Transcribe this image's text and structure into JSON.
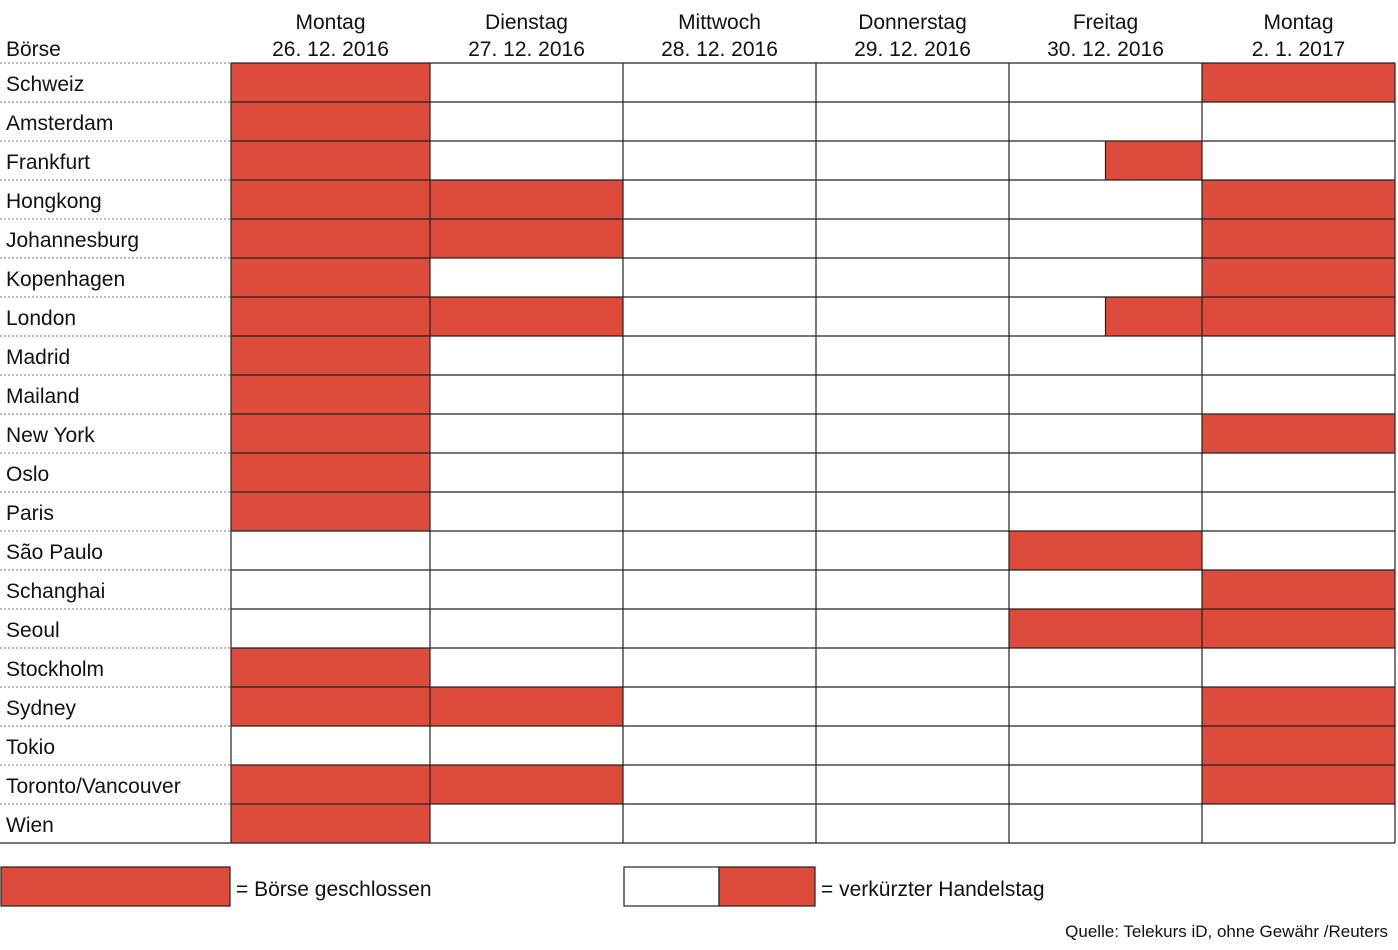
{
  "chart_data": {
    "type": "table",
    "row_header": "Börse",
    "columns": [
      {
        "day": "Montag",
        "date": "26. 12. 2016"
      },
      {
        "day": "Dienstag",
        "date": "27. 12. 2016"
      },
      {
        "day": "Mittwoch",
        "date": "28. 12. 2016"
      },
      {
        "day": "Donnerstag",
        "date": "29. 12. 2016"
      },
      {
        "day": "Freitag",
        "date": "30. 12. 2016"
      },
      {
        "day": "Montag",
        "date": "2. 1. 2017"
      }
    ],
    "rows": [
      {
        "name": "Schweiz",
        "status": [
          "closed",
          "open",
          "open",
          "open",
          "open",
          "closed"
        ]
      },
      {
        "name": "Amsterdam",
        "status": [
          "closed",
          "open",
          "open",
          "open",
          "open",
          "open"
        ]
      },
      {
        "name": "Frankfurt",
        "status": [
          "closed",
          "open",
          "open",
          "open",
          "shortened",
          "open"
        ]
      },
      {
        "name": "Hongkong",
        "status": [
          "closed",
          "closed",
          "open",
          "open",
          "open",
          "closed"
        ]
      },
      {
        "name": "Johannesburg",
        "status": [
          "closed",
          "closed",
          "open",
          "open",
          "open",
          "closed"
        ]
      },
      {
        "name": "Kopenhagen",
        "status": [
          "closed",
          "open",
          "open",
          "open",
          "open",
          "closed"
        ]
      },
      {
        "name": "London",
        "status": [
          "closed",
          "closed",
          "open",
          "open",
          "shortened",
          "closed"
        ]
      },
      {
        "name": "Madrid",
        "status": [
          "closed",
          "open",
          "open",
          "open",
          "open",
          "open"
        ]
      },
      {
        "name": "Mailand",
        "status": [
          "closed",
          "open",
          "open",
          "open",
          "open",
          "open"
        ]
      },
      {
        "name": "New York",
        "status": [
          "closed",
          "open",
          "open",
          "open",
          "open",
          "closed"
        ]
      },
      {
        "name": "Oslo",
        "status": [
          "closed",
          "open",
          "open",
          "open",
          "open",
          "open"
        ]
      },
      {
        "name": "Paris",
        "status": [
          "closed",
          "open",
          "open",
          "open",
          "open",
          "open"
        ]
      },
      {
        "name": "São Paulo",
        "status": [
          "open",
          "open",
          "open",
          "open",
          "closed",
          "open"
        ]
      },
      {
        "name": "Schanghai",
        "status": [
          "open",
          "open",
          "open",
          "open",
          "open",
          "closed"
        ]
      },
      {
        "name": "Seoul",
        "status": [
          "open",
          "open",
          "open",
          "open",
          "closed",
          "closed"
        ]
      },
      {
        "name": "Stockholm",
        "status": [
          "closed",
          "open",
          "open",
          "open",
          "open",
          "open"
        ]
      },
      {
        "name": "Sydney",
        "status": [
          "closed",
          "closed",
          "open",
          "open",
          "open",
          "closed"
        ]
      },
      {
        "name": "Tokio",
        "status": [
          "open",
          "open",
          "open",
          "open",
          "open",
          "closed"
        ]
      },
      {
        "name": "Toronto/Vancouver",
        "status": [
          "closed",
          "closed",
          "open",
          "open",
          "open",
          "closed"
        ]
      },
      {
        "name": "Wien",
        "status": [
          "closed",
          "open",
          "open",
          "open",
          "open",
          "open"
        ]
      }
    ],
    "legend": {
      "closed": "=  Börse geschlossen",
      "shortened": "=  verkürzter Handelstag"
    },
    "source": "Quelle: Telekurs iD, ohne Gewähr /Reuters",
    "colors": {
      "closed": "#dc4b3c",
      "open": "#ffffff",
      "grid": "#222222",
      "row_separator": "#777777"
    }
  }
}
